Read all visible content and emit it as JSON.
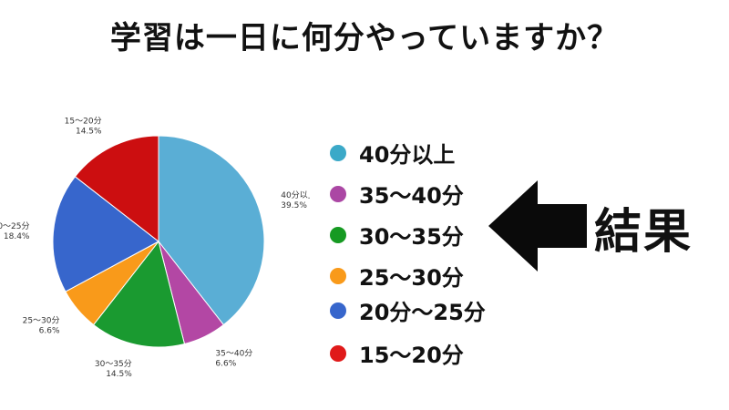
{
  "title": "学習は一日に何分やっていますか？",
  "result_label": "結果",
  "chart_data": {
    "type": "pie",
    "title": "学習は一日に何分やっていますか？",
    "slices": [
      {
        "label": "40分以上",
        "value": 39.5,
        "value_label": "39.5%",
        "color": "#5aaed5"
      },
      {
        "label": "35〜40分",
        "value": 6.6,
        "value_label": "6.6%",
        "color": "#b347a4"
      },
      {
        "label": "30〜35分",
        "value": 14.5,
        "value_label": "14.5%",
        "color": "#1a9a30"
      },
      {
        "label": "25〜30分",
        "value": 6.6,
        "value_label": "6.6%",
        "color": "#f99a1a"
      },
      {
        "label": "20〜25分",
        "value": 18.4,
        "value_label": "18.4%",
        "color": "#3766cc"
      },
      {
        "label": "15〜20分",
        "value": 14.5,
        "value_label": "14.5%",
        "color": "#cc0e10"
      }
    ],
    "start_angle": "12 o'clock",
    "direction": "clockwise"
  },
  "legend": {
    "items": [
      {
        "label": "40分以上",
        "color": "#3ba9c8"
      },
      {
        "label": "35〜40分",
        "color": "#ab47a4"
      },
      {
        "label": "30〜35分",
        "color": "#169a22"
      },
      {
        "label": " 25〜30分",
        "color": "#f99a1a"
      },
      {
        "label": "20分〜25分",
        "color": "#3766cc"
      },
      {
        "label": "15〜20分",
        "color": "#e01a1a"
      }
    ]
  }
}
